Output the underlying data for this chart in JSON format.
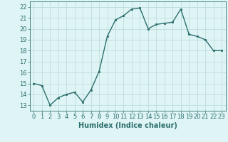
{
  "x": [
    0,
    1,
    2,
    3,
    4,
    5,
    6,
    7,
    8,
    9,
    10,
    11,
    12,
    13,
    14,
    15,
    16,
    17,
    18,
    19,
    20,
    21,
    22,
    23
  ],
  "y": [
    15.0,
    14.8,
    13.0,
    13.7,
    14.0,
    14.2,
    13.3,
    14.4,
    16.1,
    19.3,
    20.8,
    21.2,
    21.8,
    21.9,
    20.0,
    20.4,
    20.5,
    20.6,
    21.8,
    19.5,
    19.3,
    19.0,
    18.0,
    18.0
  ],
  "line_color": "#2d6e6e",
  "marker": "o",
  "marker_size": 1.8,
  "line_width": 1.0,
  "bg_color": "#dff5f5",
  "grid_color": "#b8d8d8",
  "xlabel": "Humidex (Indice chaleur)",
  "xlabel_fontsize": 7,
  "tick_fontsize": 6,
  "xlim": [
    -0.5,
    23.5
  ],
  "ylim": [
    12.5,
    22.5
  ],
  "yticks": [
    13,
    14,
    15,
    16,
    17,
    18,
    19,
    20,
    21,
    22
  ],
  "xticks": [
    0,
    1,
    2,
    3,
    4,
    5,
    6,
    7,
    8,
    9,
    10,
    11,
    12,
    13,
    14,
    15,
    16,
    17,
    18,
    19,
    20,
    21,
    22,
    23
  ]
}
